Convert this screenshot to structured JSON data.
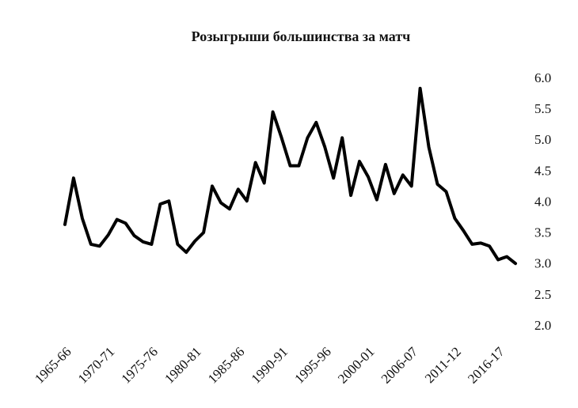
{
  "chart_data": {
    "type": "line",
    "title": "Розыгрыши большинства за матч",
    "categories": [
      "1965-66",
      null,
      null,
      null,
      null,
      "1970-71",
      null,
      null,
      null,
      null,
      "1975-76",
      null,
      null,
      null,
      null,
      "1980-81",
      null,
      null,
      null,
      null,
      "1985-86",
      null,
      null,
      null,
      null,
      "1990-91",
      null,
      null,
      null,
      null,
      "1995-96",
      null,
      null,
      null,
      null,
      "2000-01",
      null,
      null,
      null,
      null,
      "2006-07",
      null,
      null,
      null,
      null,
      "2011-12",
      null,
      null,
      null,
      null,
      "2016-17",
      null,
      null
    ],
    "series": [
      {
        "name": "Розыгрыши большинства",
        "color": "#000000",
        "values": [
          3.65,
          4.4,
          3.75,
          3.33,
          3.3,
          3.48,
          3.73,
          3.67,
          3.47,
          3.37,
          3.33,
          3.98,
          4.03,
          3.33,
          3.2,
          3.38,
          3.52,
          4.27,
          4.0,
          3.9,
          4.22,
          4.03,
          4.65,
          4.32,
          5.47,
          5.05,
          4.6,
          4.6,
          5.05,
          5.3,
          4.9,
          4.4,
          5.05,
          4.12,
          4.67,
          4.42,
          4.05,
          4.62,
          4.15,
          4.45,
          4.27,
          5.85,
          4.9,
          4.3,
          4.18,
          3.75,
          3.55,
          3.33,
          3.35,
          3.3,
          3.08,
          3.13,
          3.02
        ]
      }
    ],
    "ylim": [
      2,
      6
    ],
    "yticks": [
      {
        "value": 2,
        "label": "2.0"
      },
      {
        "value": 2.5,
        "label": "2.5"
      },
      {
        "value": 3,
        "label": "3.0"
      },
      {
        "value": 3.5,
        "label": "3.5"
      },
      {
        "value": 4,
        "label": "4.0"
      },
      {
        "value": 4.5,
        "label": "4.5"
      },
      {
        "value": 5,
        "label": "5.0"
      },
      {
        "value": 5.5,
        "label": "5.5"
      },
      {
        "value": 6,
        "label": "6.0"
      }
    ],
    "y_axis_side": "right"
  }
}
